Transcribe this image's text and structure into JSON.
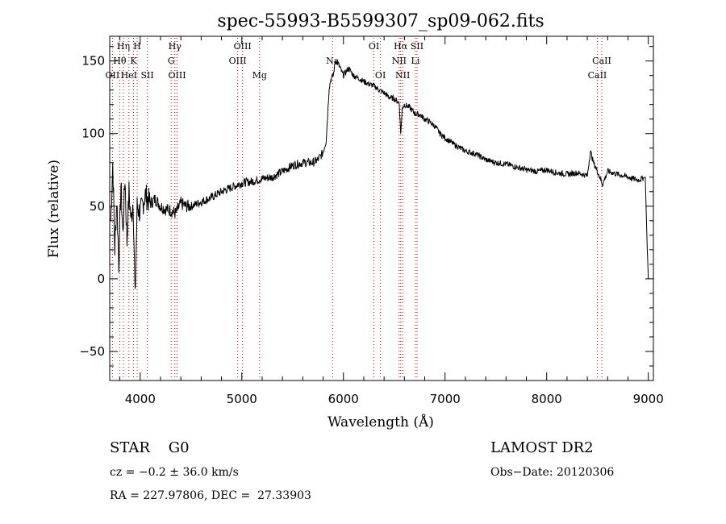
{
  "chart_data": {
    "type": "line",
    "title": "spec-55993-B5599307_sp09-062.fits",
    "xlabel": "Wavelength (Å)",
    "ylabel": "Flux (relative)",
    "xlim": [
      3700,
      9050
    ],
    "ylim": [
      -70,
      167
    ],
    "xticks": [
      4000,
      5000,
      6000,
      7000,
      8000,
      9000
    ],
    "yticks": [
      -50,
      0,
      50,
      100,
      150
    ],
    "grid": false,
    "series": [
      {
        "name": "",
        "color": "#000000",
        "x": [
          3710,
          3730,
          3750,
          3770,
          3790,
          3810,
          3830,
          3850,
          3870,
          3890,
          3910,
          3930,
          3950,
          3970,
          4000,
          4050,
          4100,
          4150,
          4200,
          4250,
          4300,
          4350,
          4400,
          4450,
          4500,
          4600,
          4700,
          4800,
          4900,
          5000,
          5100,
          5200,
          5300,
          5400,
          5500,
          5600,
          5700,
          5750,
          5800,
          5830,
          5860,
          5880,
          5900,
          5920,
          5950,
          5980,
          6000,
          6050,
          6100,
          6150,
          6200,
          6250,
          6300,
          6350,
          6400,
          6450,
          6500,
          6550,
          6563,
          6580,
          6600,
          6650,
          6700,
          6750,
          6800,
          6850,
          6900,
          6950,
          7000,
          7100,
          7200,
          7300,
          7400,
          7500,
          7600,
          7700,
          7800,
          7900,
          8000,
          8100,
          8200,
          8300,
          8400,
          8430,
          8460,
          8500,
          8550,
          8600,
          8700,
          8800,
          8900,
          8970,
          8990,
          9000
        ],
        "y": [
          40,
          80,
          20,
          55,
          10,
          65,
          30,
          70,
          25,
          60,
          40,
          55,
          -15,
          50,
          45,
          58,
          52,
          55,
          50,
          48,
          47,
          45,
          52,
          50,
          50,
          53,
          56,
          60,
          63,
          66,
          67,
          69,
          70,
          74,
          78,
          80,
          80,
          82,
          87,
          95,
          132,
          138,
          140,
          150,
          148,
          143,
          140,
          145,
          140,
          138,
          136,
          134,
          133,
          130,
          128,
          125,
          124,
          121,
          100,
          118,
          120,
          118,
          114,
          113,
          110,
          108,
          105,
          100,
          97,
          92,
          88,
          86,
          82,
          80,
          79,
          77,
          75,
          74,
          75,
          73,
          72,
          73,
          71,
          88,
          80,
          74,
          65,
          74,
          72,
          70,
          68,
          70,
          20,
          0
        ]
      }
    ],
    "spectral_lines": [
      {
        "label": "Hη",
        "wavelength": 3835,
        "row": 1
      },
      {
        "label": "H",
        "wavelength": 3970,
        "row": 1
      },
      {
        "label": "Hθ",
        "wavelength": 3798,
        "row": 2
      },
      {
        "label": "K",
        "wavelength": 3934,
        "row": 2
      },
      {
        "label": "OII",
        "wavelength": 3727,
        "row": 3
      },
      {
        "label": "HeI",
        "wavelength": 3889,
        "row": 3
      },
      {
        "label": "SII",
        "wavelength": 4070,
        "row": 3
      },
      {
        "label": "Hγ",
        "wavelength": 4341,
        "row": 1
      },
      {
        "label": "G",
        "wavelength": 4305,
        "row": 2
      },
      {
        "label": "OIII",
        "wavelength": 4363,
        "row": 3
      },
      {
        "label": "OIII",
        "wavelength": 5007,
        "row": 1
      },
      {
        "label": "OIII",
        "wavelength": 4959,
        "row": 2
      },
      {
        "label": "Mg",
        "wavelength": 5175,
        "row": 3
      },
      {
        "label": "Na",
        "wavelength": 5893,
        "row": 2
      },
      {
        "label": "OI",
        "wavelength": 6300,
        "row": 1
      },
      {
        "label": "OI",
        "wavelength": 6364,
        "row": 3
      },
      {
        "label": "Hα",
        "wavelength": 6563,
        "row": 1
      },
      {
        "label": "SII",
        "wavelength": 6724,
        "row": 1
      },
      {
        "label": "NII",
        "wavelength": 6548,
        "row": 2
      },
      {
        "label": "Li",
        "wavelength": 6708,
        "row": 2
      },
      {
        "label": "NII",
        "wavelength": 6583,
        "row": 3
      },
      {
        "label": "CaII",
        "wavelength": 8542,
        "row": 2
      },
      {
        "label": "CaII",
        "wavelength": 8498,
        "row": 3
      }
    ]
  },
  "info": {
    "class_text": "STAR    G0",
    "survey": "LAMOST DR2",
    "cz": "cz = −0.2 ± 36.0 km/s",
    "obs_date": "Obs−Date: 20120306",
    "radec": "RA = 227.97806, DEC =  27.33903"
  },
  "colors": {
    "line_marker": "#cc0000",
    "spectrum": "#000000"
  }
}
